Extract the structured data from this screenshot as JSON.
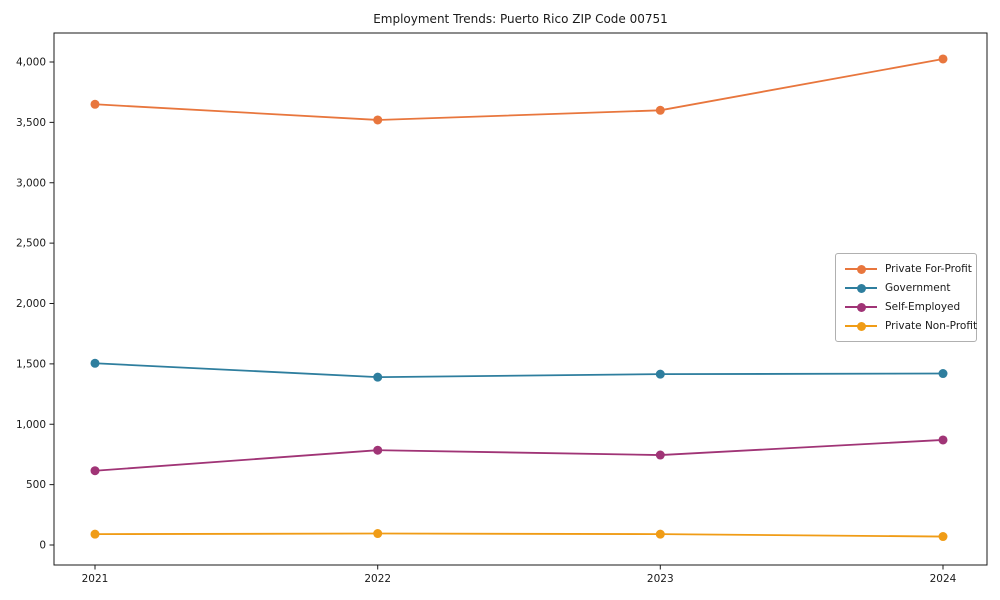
{
  "title": "Employment Trends: Puerto Rico ZIP Code 00751",
  "chart_data": {
    "type": "line",
    "title": "Employment Trends: Puerto Rico ZIP Code 00751",
    "xlabel": "",
    "ylabel": "",
    "x": [
      2021,
      2022,
      2023,
      2024
    ],
    "xtick_labels": [
      "2021",
      "2022",
      "2023",
      "2024"
    ],
    "yticks": [
      0,
      500,
      1000,
      1500,
      2000,
      2500,
      3000,
      3500,
      4000
    ],
    "ytick_labels": [
      "0",
      "500",
      "1,000",
      "1,500",
      "2,000",
      "2,500",
      "3,000",
      "3,500",
      "4,000"
    ],
    "ylim": [
      -130,
      4230
    ],
    "grid": false,
    "legend_position": "center right",
    "series": [
      {
        "name": "Private For-Profit",
        "color": "#e8763d",
        "values": [
          3650,
          3520,
          3600,
          4025
        ]
      },
      {
        "name": "Government",
        "color": "#2e7e9e",
        "values": [
          1505,
          1390,
          1415,
          1420
        ]
      },
      {
        "name": "Self-Employed",
        "color": "#a03476",
        "values": [
          615,
          785,
          745,
          870
        ]
      },
      {
        "name": "Private Non-Profit",
        "color": "#f09c16",
        "values": [
          90,
          95,
          90,
          70
        ]
      }
    ]
  }
}
